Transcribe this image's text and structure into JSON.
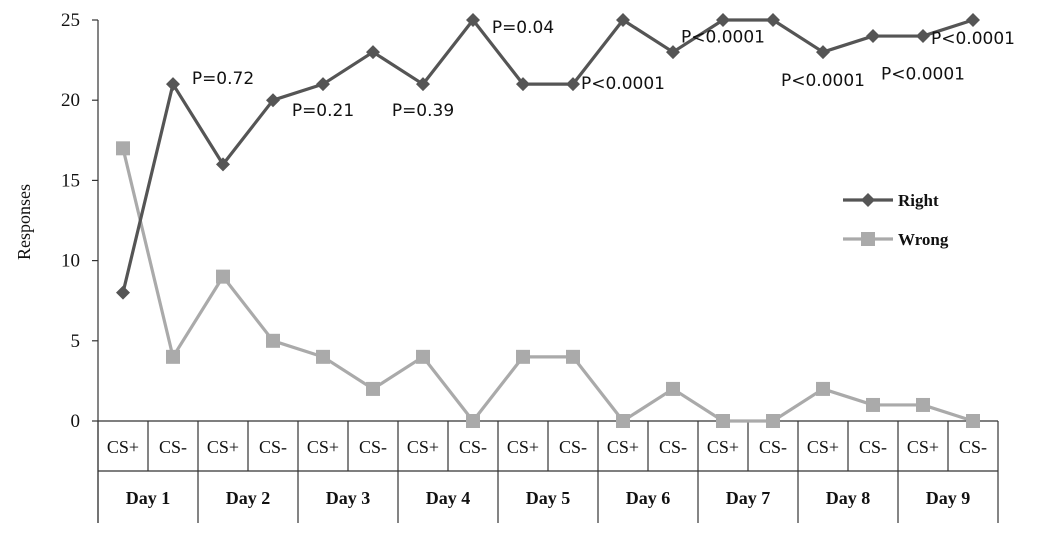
{
  "chart_data": {
    "type": "line",
    "ylabel": "Responses",
    "ylim": [
      0,
      25
    ],
    "yticks": [
      0,
      5,
      10,
      15,
      20,
      25
    ],
    "grid": false,
    "legend_position": "right",
    "categories": [
      "CS+",
      "CS-",
      "CS+",
      "CS-",
      "CS+",
      "CS-",
      "CS+",
      "CS-",
      "CS+",
      "CS-",
      "CS+",
      "CS-",
      "CS+",
      "CS-",
      "CS+",
      "CS-",
      "CS+",
      "CS-"
    ],
    "groups": [
      "Day 1",
      "Day 2",
      "Day 3",
      "Day 4",
      "Day 5",
      "Day 6",
      "Day 7",
      "Day 8",
      "Day 9"
    ],
    "series": [
      {
        "name": "Right",
        "color": "#555555",
        "marker": "diamond",
        "values": [
          8,
          21,
          16,
          20,
          21,
          23,
          21,
          25,
          21,
          21,
          25,
          23,
          25,
          25,
          23,
          24,
          24,
          25
        ]
      },
      {
        "name": "Wrong",
        "color": "#aaaaaa",
        "marker": "square",
        "values": [
          17,
          4,
          9,
          5,
          4,
          2,
          4,
          0,
          4,
          4,
          0,
          2,
          0,
          0,
          2,
          1,
          1,
          0
        ]
      }
    ],
    "annotations": [
      {
        "text": "P=0.72",
        "category_index": 2,
        "y": 21
      },
      {
        "text": "P=0.21",
        "category_index": 4,
        "y": 19
      },
      {
        "text": "P=0.39",
        "category_index": 6,
        "y": 19
      },
      {
        "text": "P=0.04",
        "category_index": 8,
        "y": 24.2
      },
      {
        "text": "P<0.0001",
        "category_index": 10,
        "y": 20.7
      },
      {
        "text": "P<0.0001",
        "category_index": 12,
        "y": 23.6
      },
      {
        "text": "P<0.0001",
        "category_index": 14,
        "y": 20.9
      },
      {
        "text": "P<0.0001",
        "category_index": 16,
        "y": 21.3
      },
      {
        "text": "P<0.0001",
        "category_index": 17,
        "y": 23.5
      }
    ]
  }
}
